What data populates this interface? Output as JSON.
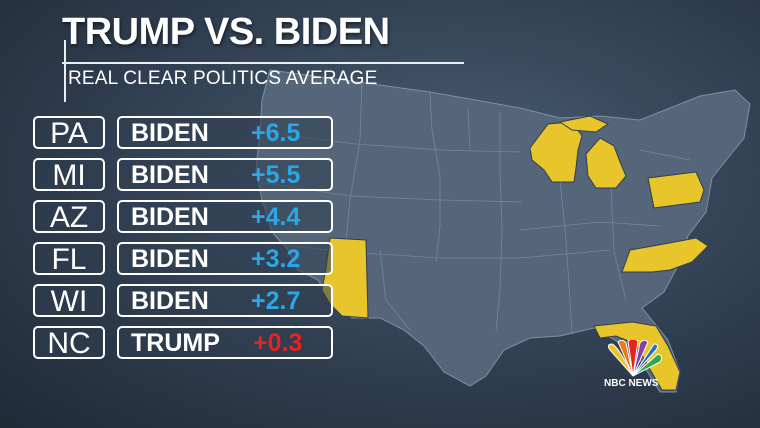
{
  "title": "TRUMP VS. BIDEN",
  "subtitle": "REAL CLEAR POLITICS AVERAGE",
  "rows": [
    {
      "state": "PA",
      "candidate": "BIDEN",
      "margin": "+6.5"
    },
    {
      "state": "MI",
      "candidate": "BIDEN",
      "margin": "+5.5"
    },
    {
      "state": "AZ",
      "candidate": "BIDEN",
      "margin": "+4.4"
    },
    {
      "state": "FL",
      "candidate": "BIDEN",
      "margin": "+3.2"
    },
    {
      "state": "WI",
      "candidate": "BIDEN",
      "margin": "+2.7"
    },
    {
      "state": "NC",
      "candidate": "TRUMP",
      "margin": "+0.3"
    }
  ],
  "logo": {
    "icon": "nbc-peacock-icon",
    "text": "NBC NEWS"
  },
  "colors": {
    "biden": "#28a8e8",
    "trump": "#e8221e",
    "highlight_states": "#e8c52a",
    "map": "#55667a"
  }
}
